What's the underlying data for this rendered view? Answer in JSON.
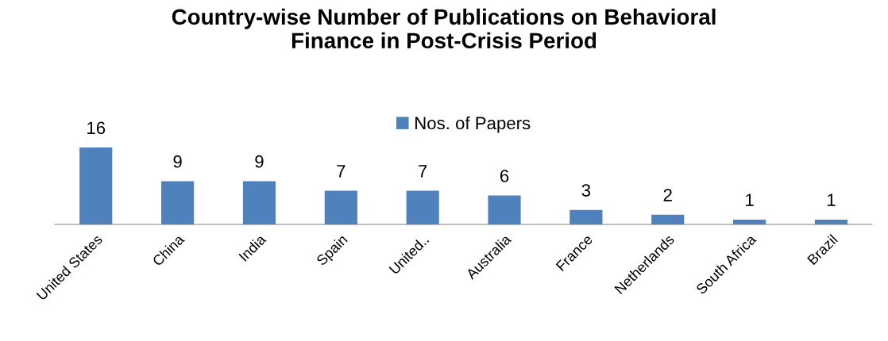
{
  "chart_data": {
    "type": "bar",
    "title": "Country-wise Number of Publications on Behavioral\nFinance in Post-Crisis Period",
    "categories": [
      "United States",
      "China",
      "India",
      "Spain",
      "United..",
      "Australia",
      "France",
      "Netherlands",
      "South Africa",
      "Brazil"
    ],
    "series": [
      {
        "name": "Nos. of Papers",
        "color": "#4f81bd",
        "values": [
          16,
          9,
          9,
          7,
          7,
          6,
          3,
          2,
          1,
          1
        ]
      }
    ],
    "data_labels": true,
    "legend": "top",
    "grid": false
  }
}
